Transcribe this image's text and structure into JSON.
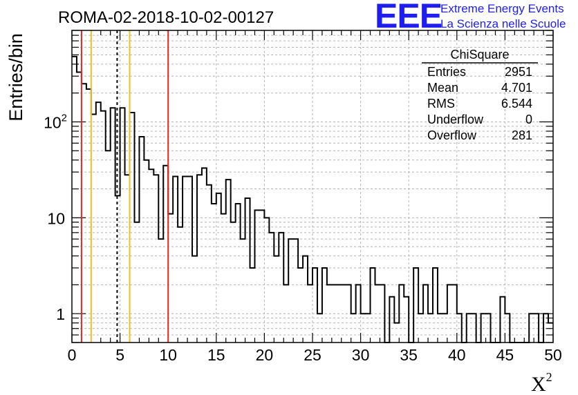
{
  "chart_data": {
    "type": "bar",
    "title": "ROMA-02-2018-10-02-00127",
    "xlabel": "X",
    "xlabel_superscript": "2",
    "ylabel": "Entries/bin",
    "x_range": [
      0,
      50
    ],
    "y_range": [
      0.5,
      900
    ],
    "y_scale": "log",
    "grid": true,
    "bin_width": 0.5,
    "bin_start": 0,
    "x_ticks": [
      0,
      5,
      10,
      15,
      20,
      25,
      30,
      35,
      40,
      45,
      50
    ],
    "y_ticks": [
      {
        "value": 1,
        "label": "1"
      },
      {
        "value": 10,
        "label": "10"
      },
      {
        "value": 100,
        "label": "10",
        "exponent": "2"
      }
    ],
    "values": [
      480,
      330,
      250,
      220,
      120,
      160,
      130,
      50,
      140,
      17,
      140,
      28,
      125,
      9,
      70,
      40,
      32,
      28,
      6,
      35,
      11,
      27,
      8,
      27,
      27,
      4,
      28,
      33,
      22,
      14,
      18,
      11,
      25,
      9,
      14,
      6,
      16,
      3,
      12,
      12,
      10,
      7,
      4,
      7,
      2,
      6,
      6,
      3,
      4,
      2,
      3,
      1,
      3,
      2,
      2,
      2,
      2,
      2,
      1,
      2,
      1,
      1,
      3,
      2,
      2,
      0.3,
      1.5,
      0.8,
      2,
      1.5,
      0.3,
      3,
      1,
      2,
      1,
      3,
      1,
      1,
      2,
      2,
      1,
      0.3,
      1,
      1,
      0.3,
      1,
      1,
      0.3,
      0,
      1.5,
      1,
      0,
      0,
      0.3,
      0,
      1,
      1,
      0.3,
      1,
      0.8
    ],
    "vertical_lines": [
      {
        "x": 1,
        "color": "#e8271e",
        "style": "solid"
      },
      {
        "x": 2,
        "color": "#f0c020",
        "style": "solid"
      },
      {
        "x": 4.7,
        "color": "#000000",
        "style": "dashed"
      },
      {
        "x": 6,
        "color": "#f0c020",
        "style": "solid"
      },
      {
        "x": 10,
        "color": "#e8271e",
        "style": "solid"
      }
    ],
    "line_color": "#000000",
    "stats_box": {
      "title": "ChiSquare",
      "rows": [
        {
          "label": "Entries",
          "value": "2951"
        },
        {
          "label": "Mean",
          "value": "4.701"
        },
        {
          "label": "RMS",
          "value": "6.544"
        },
        {
          "label": "Underflow",
          "value": "0"
        },
        {
          "label": "Overflow",
          "value": "281"
        }
      ]
    }
  },
  "logo": {
    "mark": "EEE",
    "line1": "Extreme Energy Events",
    "line2": "La Scienza nelle Scuole",
    "color": "#1e1ef0"
  }
}
